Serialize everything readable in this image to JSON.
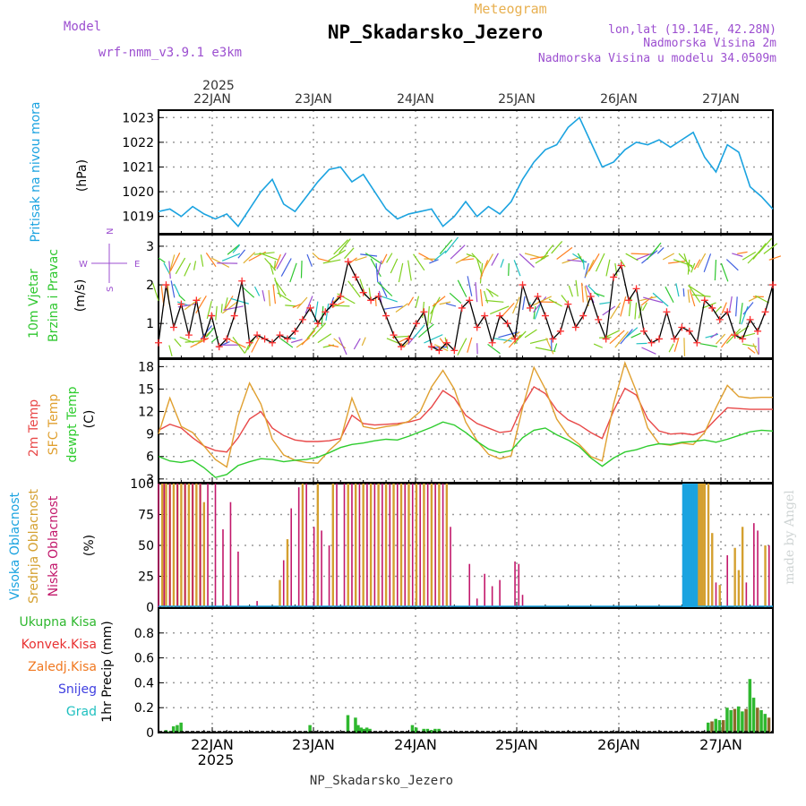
{
  "header": {
    "subtitle": "Meteogram",
    "title": "NP_Skadarsko_Jezero",
    "model_label": "Model",
    "model_name": "wrf-nmm_v3.9.1 e3km",
    "lonlat": "lon,lat (19.14E, 42.28N)",
    "altitude": "Nadmorska Visina 2m",
    "model_altitude": "Nadmorska Visina u modelu 34.0509m",
    "watermark": "made by Angel",
    "footer_station": "NP_Skadarsko_Jezero"
  },
  "colors": {
    "pressure": "#1ba3e0",
    "wind_label": "#2fc72f",
    "wind_speed": "#000000",
    "wind_marker": "#ff3030",
    "t2m": "#e84848",
    "tsfc": "#e0a030",
    "dewpt": "#2ecc2e",
    "cloud_high": "#1ba3e0",
    "cloud_mid": "#d4a030",
    "cloud_low": "#c2186b",
    "precip_total": "#2fb82f",
    "precip_conv": "#e83030",
    "precip_frozen": "#f07820",
    "precip_snow": "#4040e0",
    "precip_grad": "#20c0c0",
    "title_purple": "#9c4fd0",
    "meteogram_orange": "#e8b050"
  },
  "time_axis": {
    "top_year": "2025",
    "bottom_year": "2025",
    "day_labels": [
      "22JAN",
      "23JAN",
      "24JAN",
      "25JAN",
      "26JAN",
      "27JAN"
    ]
  },
  "panel_labels": {
    "pressure": {
      "name": "Pritisak na nivou mora",
      "unit": "(hPa)"
    },
    "wind": {
      "name1": "10m Vjetar",
      "name2": "Brzina i Pravac",
      "unit": "(m/s)",
      "compass_n": "N",
      "compass_s": "S",
      "compass_w": "W",
      "compass_e": "E"
    },
    "temp": {
      "name1": "2m Temp",
      "name2": "SFC Temp",
      "name3": "dewpt Temp",
      "unit": "(C)"
    },
    "cloud": {
      "name1": "Visoka Oblacnost",
      "name2": "Srednja Oblacnost",
      "name3": "Niska Oblacnost",
      "unit": "(%)"
    },
    "precip": {
      "l1": "Ukupna Kisa",
      "l2": "Konvek.Kisa",
      "l3": "Zaledj.Kisa",
      "l4": "Snijeg",
      "l5": "Grad",
      "unit": "1hr Precip (mm)"
    }
  },
  "chart_data": [
    {
      "type": "line",
      "name": "pressure",
      "title": "Pritisak na nivou mora",
      "ylabel": "(hPa)",
      "ylim": [
        1018.3,
        1023.3
      ],
      "yticks": [
        "1019",
        "1020",
        "1021",
        "1022",
        "1023"
      ],
      "x_hours": [
        0,
        3,
        6,
        9,
        12,
        15,
        18,
        21,
        24,
        27,
        30,
        33,
        36,
        39,
        42,
        45,
        48,
        51,
        54,
        57,
        60,
        63,
        66,
        69,
        72,
        75,
        78,
        81,
        84,
        87,
        90,
        93,
        96,
        99,
        102,
        105,
        108,
        111,
        114,
        117,
        120,
        123,
        126,
        129,
        132,
        135,
        138,
        141,
        144,
        147,
        150,
        153,
        156,
        159,
        162
      ],
      "values": [
        1019.2,
        1019.3,
        1019.0,
        1019.4,
        1019.1,
        1018.9,
        1019.1,
        1018.6,
        1019.3,
        1020.0,
        1020.5,
        1019.5,
        1019.2,
        1019.8,
        1020.4,
        1020.9,
        1021.0,
        1020.4,
        1020.7,
        1020.0,
        1019.3,
        1018.9,
        1019.1,
        1019.2,
        1019.3,
        1018.6,
        1019.0,
        1019.6,
        1019.0,
        1019.4,
        1019.1,
        1019.6,
        1020.5,
        1021.2,
        1021.7,
        1021.9,
        1022.6,
        1023.0,
        1022.0,
        1021.0,
        1021.2,
        1021.7,
        1022.0,
        1021.9,
        1022.1,
        1021.8,
        1022.1,
        1022.4,
        1021.4,
        1020.8,
        1021.9,
        1021.6,
        1020.2,
        1019.8,
        1019.3
      ]
    },
    {
      "type": "line",
      "name": "wind",
      "title": "10m Vjetar Brzina i Pravac",
      "ylabel": "(m/s)",
      "ylim": [
        0.1,
        3.3
      ],
      "yticks": [
        "1",
        "2",
        "3"
      ],
      "x_hours": [
        0,
        2,
        4,
        6,
        8,
        10,
        12,
        14,
        16,
        18,
        20,
        22,
        24,
        26,
        28,
        30,
        32,
        34,
        36,
        38,
        40,
        42,
        44,
        46,
        48,
        50,
        52,
        54,
        56,
        58,
        60,
        62,
        64,
        66,
        68,
        70,
        72,
        74,
        76,
        78,
        80,
        82,
        84,
        86,
        88,
        90,
        92,
        94,
        96,
        98,
        100,
        102,
        104,
        106,
        108,
        110,
        112,
        114,
        116,
        118,
        120,
        122,
        124,
        126,
        128,
        130,
        132,
        134,
        136,
        138,
        140,
        142,
        144,
        146,
        148,
        150,
        152,
        154,
        156,
        158,
        160,
        162
      ],
      "values": [
        0.5,
        2.0,
        0.9,
        1.5,
        0.7,
        1.6,
        0.6,
        1.2,
        0.4,
        0.6,
        1.2,
        2.1,
        0.5,
        0.7,
        0.6,
        0.5,
        0.7,
        0.6,
        0.8,
        1.1,
        1.4,
        1.0,
        1.3,
        1.5,
        1.7,
        2.6,
        2.2,
        1.8,
        1.6,
        1.7,
        1.2,
        0.7,
        0.4,
        0.6,
        1.0,
        1.3,
        0.4,
        0.3,
        0.5,
        0.3,
        1.4,
        1.6,
        0.9,
        1.2,
        0.5,
        1.2,
        1.0,
        0.6,
        2.0,
        1.4,
        1.7,
        1.2,
        0.6,
        0.8,
        1.5,
        0.9,
        1.2,
        1.7,
        1.1,
        0.6,
        2.2,
        2.5,
        1.6,
        1.9,
        0.8,
        0.5,
        0.6,
        1.3,
        0.6,
        0.9,
        0.8,
        0.5,
        1.6,
        1.4,
        1.1,
        1.3,
        0.7,
        0.6,
        1.1,
        0.8,
        1.3,
        2.0
      ]
    },
    {
      "type": "line",
      "name": "temperature",
      "title": "2m Temp / SFC Temp / dewpt Temp",
      "ylabel": "(C)",
      "ylim": [
        2.5,
        19
      ],
      "yticks": [
        "3",
        "6",
        "9",
        "12",
        "15",
        "18"
      ],
      "x_hours": [
        0,
        3,
        6,
        9,
        12,
        15,
        18,
        21,
        24,
        27,
        30,
        33,
        36,
        39,
        42,
        45,
        48,
        51,
        54,
        57,
        60,
        63,
        66,
        69,
        72,
        75,
        78,
        81,
        84,
        87,
        90,
        93,
        96,
        99,
        102,
        105,
        108,
        111,
        114,
        117,
        120,
        123,
        126,
        129,
        132,
        135,
        138,
        141,
        144,
        147,
        150,
        153,
        156,
        159,
        162
      ],
      "series": [
        {
          "name": "2m Temp",
          "values": [
            9.5,
            10.3,
            9.8,
            8.5,
            7.4,
            6.8,
            6.6,
            8.5,
            11.0,
            12.0,
            9.8,
            8.8,
            8.2,
            8.0,
            8.0,
            8.1,
            8.4,
            11.5,
            10.4,
            10.2,
            10.3,
            10.4,
            10.6,
            11.0,
            12.6,
            14.8,
            13.8,
            11.5,
            10.4,
            9.8,
            9.2,
            9.4,
            12.8,
            15.3,
            14.4,
            12.2,
            10.9,
            10.2,
            9.2,
            8.4,
            12.1,
            15.1,
            14.2,
            11.0,
            9.4,
            9.0,
            9.1,
            8.9,
            9.4,
            11.0,
            12.5,
            12.4,
            12.3,
            12.3,
            12.3
          ]
        },
        {
          "name": "SFC Temp",
          "values": [
            9.0,
            13.8,
            10.0,
            9.2,
            7.4,
            5.6,
            4.6,
            11.4,
            15.8,
            13.0,
            8.3,
            6.2,
            5.5,
            5.2,
            5.1,
            6.8,
            8.2,
            13.8,
            10.0,
            9.7,
            10.0,
            10.2,
            10.7,
            12.0,
            15.3,
            17.5,
            15.0,
            10.6,
            8.1,
            6.3,
            5.7,
            6.1,
            12.5,
            17.9,
            15.0,
            11.0,
            8.8,
            7.6,
            6.0,
            5.4,
            13.0,
            18.5,
            14.7,
            9.8,
            7.7,
            7.5,
            7.8,
            7.6,
            9.2,
            12.5,
            15.5,
            14.0,
            13.8,
            13.9,
            13.9
          ]
        },
        {
          "name": "dewpt Temp",
          "values": [
            6.0,
            5.4,
            5.2,
            5.5,
            4.5,
            3.2,
            3.6,
            4.8,
            5.3,
            5.7,
            5.6,
            5.3,
            5.5,
            5.6,
            5.9,
            6.5,
            7.2,
            7.6,
            7.8,
            8.1,
            8.3,
            8.2,
            8.7,
            9.3,
            9.9,
            10.6,
            10.2,
            9.2,
            8.0,
            7.0,
            6.5,
            6.8,
            8.5,
            9.5,
            9.8,
            8.9,
            8.2,
            7.3,
            5.8,
            4.7,
            5.8,
            6.6,
            6.9,
            7.4,
            7.7,
            7.6,
            7.9,
            8.0,
            8.2,
            7.9,
            8.3,
            8.8,
            9.3,
            9.5,
            9.4
          ]
        }
      ]
    },
    {
      "type": "bar",
      "name": "cloud",
      "title": "Visoka / Srednja / Niska Oblacnost",
      "ylabel": "(%)",
      "ylim": [
        0,
        100
      ],
      "yticks": [
        "0",
        "25",
        "50",
        "75",
        "100"
      ],
      "series": [
        {
          "name": "Visoka Oblacnost",
          "hours": [
            138.5,
            139,
            139.5,
            140,
            140.5,
            141,
            141.5,
            142
          ],
          "values": [
            100,
            100,
            100,
            100,
            100,
            100,
            100,
            100
          ]
        },
        {
          "name": "Srednja Oblacnost",
          "hours": [
            1,
            2,
            3,
            4,
            5,
            6,
            7,
            8,
            9,
            10,
            11,
            12,
            32,
            34,
            38,
            42,
            46,
            50,
            52,
            54,
            56,
            58,
            60,
            62,
            64,
            66,
            68,
            70,
            72,
            74,
            76,
            142.5,
            143,
            143.5,
            144,
            145,
            146,
            148,
            152,
            153,
            154,
            160
          ],
          "values": [
            100,
            100,
            100,
            100,
            100,
            100,
            100,
            100,
            100,
            100,
            100,
            85,
            22,
            55,
            100,
            100,
            100,
            100,
            100,
            100,
            100,
            100,
            100,
            100,
            100,
            100,
            100,
            100,
            100,
            100,
            100,
            100,
            100,
            100,
            100,
            100,
            60,
            18,
            48,
            30,
            65,
            50
          ]
        },
        {
          "name": "Niska Oblacnost",
          "hours": [
            0,
            1.5,
            3,
            5,
            7,
            9,
            11,
            13,
            15,
            17,
            19,
            21,
            26,
            33,
            35,
            37,
            39,
            41,
            43,
            45,
            47,
            49,
            51,
            53,
            55,
            57,
            59,
            61,
            63,
            65,
            67,
            69,
            71,
            73,
            75,
            77,
            82,
            84,
            86,
            88,
            90,
            94,
            95,
            96,
            147,
            150,
            155,
            157,
            158,
            161
          ],
          "values": [
            100,
            100,
            100,
            100,
            100,
            100,
            100,
            100,
            100,
            63,
            85,
            45,
            5,
            38,
            80,
            97,
            100,
            65,
            62,
            50,
            100,
            100,
            100,
            100,
            100,
            100,
            100,
            100,
            100,
            100,
            100,
            100,
            100,
            100,
            100,
            65,
            35,
            7,
            27,
            17,
            22,
            37,
            35,
            10,
            20,
            42,
            20,
            68,
            62,
            50
          ]
        }
      ]
    },
    {
      "type": "bar",
      "name": "precip",
      "title": "1hr Precip",
      "ylabel": "1hr Precip (mm)",
      "ylim": [
        0,
        1.0
      ],
      "yticks": [
        "0",
        "0.2",
        "0.4",
        "0.6",
        "0.8"
      ],
      "hours": [
        2,
        3,
        4,
        5,
        6,
        40,
        50,
        52,
        52.7,
        53.5,
        54.2,
        55,
        55.8,
        67,
        68,
        70,
        71,
        72,
        73,
        74,
        145,
        146,
        147,
        148,
        149,
        150,
        151,
        152,
        153,
        154,
        155,
        156,
        157,
        158,
        159,
        160,
        161
      ],
      "values": [
        0.02,
        0.01,
        0.05,
        0.06,
        0.08,
        0.06,
        0.14,
        0.12,
        0.06,
        0.04,
        0.03,
        0.04,
        0.03,
        0.06,
        0.04,
        0.03,
        0.03,
        0.02,
        0.03,
        0.03,
        0.08,
        0.09,
        0.11,
        0.1,
        0.1,
        0.2,
        0.18,
        0.19,
        0.21,
        0.17,
        0.19,
        0.43,
        0.28,
        0.2,
        0.18,
        0.15,
        0.12
      ]
    }
  ]
}
